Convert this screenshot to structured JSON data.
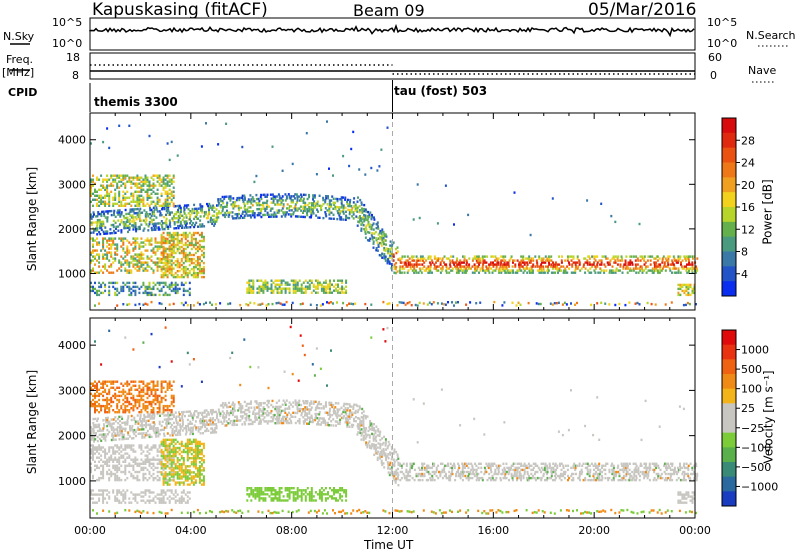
{
  "header": {
    "station": "Kapuskasing (fitACF)",
    "beam": "Beam 09",
    "date": "05/Mar/2016"
  },
  "left_labels": {
    "nsky": "N.Sky",
    "freq": "Freq.",
    "mhz": "[MHz]",
    "cpid": "CPID"
  },
  "right_labels": {
    "nsearch": "N.Search",
    "nave": "Nave"
  },
  "cpid_segments": [
    "themis 3300",
    "tau (fost) 503"
  ],
  "chart_data": [
    {
      "type": "line",
      "name": "N.Sky / N.Search",
      "left_ticks": [
        "10^5",
        "10^0"
      ],
      "right_ticks": [
        "10^5",
        "10^0"
      ]
    },
    {
      "type": "line",
      "name": "Freq / Nave",
      "left_ticks": [
        "18",
        "8"
      ],
      "right_ticks": [
        "60",
        "0"
      ],
      "segments": [
        {
          "from_hour": 0,
          "to_hour": 12,
          "freq_mhz": 10.5,
          "nave": 33
        },
        {
          "from_hour": 12,
          "to_hour": 24,
          "freq_mhz": 10.5,
          "nave": 6
        }
      ]
    },
    {
      "type": "heatmap",
      "ylabel": "Slant Range [km]",
      "yticks": [
        1000,
        2000,
        3000,
        4000
      ],
      "ylim": [
        180,
        4600
      ],
      "xlim": [
        0,
        24
      ],
      "colorbar": {
        "label": "Power [dB]",
        "ticks": [
          "4",
          "8",
          "12",
          "16",
          "20",
          "24",
          "28"
        ],
        "colors": [
          "#0a2ef0",
          "#2254c8",
          "#3a78a8",
          "#4a9a80",
          "#64b04c",
          "#b6d42a",
          "#f2d21c",
          "#f0a020",
          "#ee7818",
          "#ea5212",
          "#e02a10",
          "#d80c0c"
        ]
      }
    },
    {
      "type": "heatmap",
      "ylabel": "Slant Range [km]",
      "xlabel": "Time UT",
      "yticks": [
        1000,
        2000,
        3000,
        4000
      ],
      "ylim": [
        180,
        4600
      ],
      "xlim": [
        0,
        24
      ],
      "xticks": [
        "00:00",
        "04:00",
        "08:00",
        "12:00",
        "16:00",
        "20:00",
        "00:00"
      ],
      "colorbar": {
        "label": "Velocity [m s⁻¹]",
        "ticks": [
          "1000",
          "500",
          "100",
          "25",
          "−25",
          "−100",
          "−500",
          "−1000"
        ],
        "colors": [
          "#1a3cc0",
          "#2a6a9e",
          "#3a8a78",
          "#5ab04a",
          "#7ccc3a",
          "#c8c6c0",
          "#c8c6c0",
          "#f2b418",
          "#f08a16",
          "#ee6212",
          "#e83210",
          "#e00a0a"
        ]
      }
    }
  ]
}
